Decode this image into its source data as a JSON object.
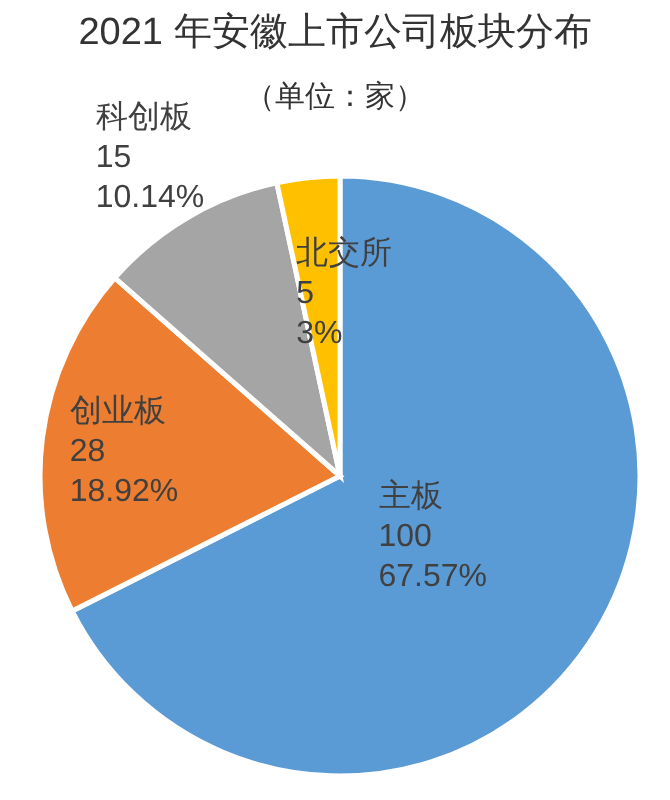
{
  "chart_data": {
    "type": "pie",
    "title": "2021 年安徽上市公司板块分布",
    "subtitle": "（单位：家）",
    "categories": [
      "主板",
      "创业板",
      "科创板",
      "北交所"
    ],
    "values": [
      100,
      28,
      15,
      5
    ],
    "value_labels": [
      "100\n67.57%",
      "28\n18.92%",
      "15\n10.14%",
      "5\n3%"
    ],
    "colors": [
      "#5b9bd5",
      "#ed7d31",
      "#a5a5a5",
      "#ffc000"
    ]
  }
}
